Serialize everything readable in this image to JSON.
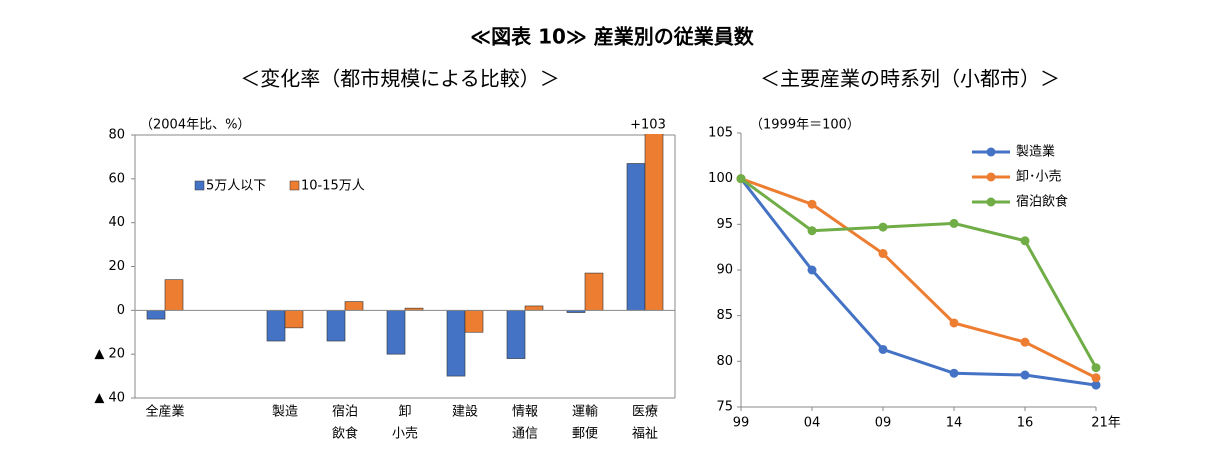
{
  "title": "≪図表 10≫ 産業別の従業員数",
  "chart_data": [
    {
      "type": "bar",
      "title": "＜変化率（都市規模による比較）＞",
      "y_label": "（2004年比、%）",
      "categories": [
        "全産業",
        null,
        "製造",
        [
          "宿泊",
          "飲食"
        ],
        [
          "卸",
          "小売"
        ],
        "建設",
        [
          "情報",
          "通信"
        ],
        [
          "運輸",
          "郵便"
        ],
        [
          "医療",
          "福祉"
        ]
      ],
      "series": [
        {
          "name": "5万人以下",
          "color": "#4472c4",
          "values": [
            -4,
            null,
            -14,
            -14,
            -20,
            -30,
            -22,
            -1,
            67
          ]
        },
        {
          "name": "10-15万人",
          "color": "#ed7d31",
          "values": [
            14,
            null,
            -8,
            4,
            1,
            -10,
            2,
            17,
            103
          ],
          "value_labels": [
            null,
            null,
            null,
            null,
            null,
            null,
            null,
            null,
            "+103"
          ]
        }
      ],
      "ylim": [
        -40,
        80
      ],
      "yticks": [
        {
          "value": -40,
          "label": "▲ 40"
        },
        {
          "value": -20,
          "label": "▲ 20"
        },
        0,
        20,
        40,
        60,
        80
      ],
      "legend": "upper left"
    },
    {
      "type": "line",
      "title": "＜主要産業の時系列（小都市）＞",
      "y_label": "（1999年＝100）",
      "categories": [
        "99",
        "04",
        "09",
        "14",
        "16",
        "21年"
      ],
      "series": [
        {
          "name": "製造業",
          "color": "#4472c4",
          "values": [
            100,
            90,
            81.3,
            78.7,
            78.5,
            77.4
          ]
        },
        {
          "name": "卸･小売",
          "color": "#ed7d31",
          "values": [
            100,
            97.2,
            91.8,
            84.2,
            82.1,
            78.2
          ]
        },
        {
          "name": "宿泊飲食",
          "color": "#70ad47",
          "values": [
            100,
            94.3,
            94.7,
            95.1,
            93.2,
            79.3
          ]
        }
      ],
      "ylim": [
        75,
        105
      ],
      "yticks": [
        75,
        80,
        85,
        90,
        95,
        100,
        105
      ],
      "legend": "upper right"
    }
  ]
}
